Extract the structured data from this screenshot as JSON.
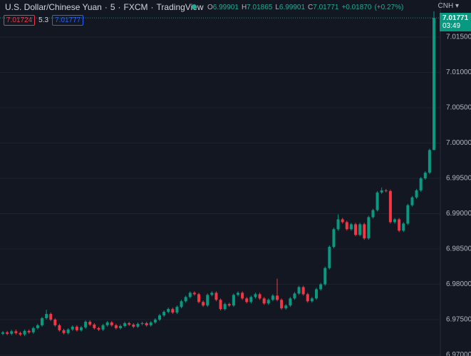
{
  "header": {
    "title": "U.S. Dollar/Chinese Yuan",
    "sep": "·",
    "interval": "5",
    "exchange": "FXCM",
    "source": "TradingView",
    "open_label": "O",
    "high_label": "H",
    "low_label": "L",
    "close_label": "C",
    "change": "+0.01870",
    "change_pct": "(+0.27%)",
    "bid": "7.01724",
    "spread": "5.3",
    "ask": "7.01777",
    "currency": "CNH",
    "countdown": "03:49"
  },
  "chart_data": {
    "type": "candlestick",
    "up_color": "#089981",
    "down_color": "#f23645",
    "grid": true,
    "ylim": [
      6.96985,
      7.02025
    ],
    "yticks": [
      {
        "value": 6.97,
        "label": "6.97000"
      },
      {
        "value": 6.975,
        "label": "6.97500"
      },
      {
        "value": 6.98,
        "label": "6.98000"
      },
      {
        "value": 6.985,
        "label": "6.98500"
      },
      {
        "value": 6.99,
        "label": "6.99000"
      },
      {
        "value": 6.995,
        "label": "6.99500"
      },
      {
        "value": 7.0,
        "label": "7.00000"
      },
      {
        "value": 7.005,
        "label": "7.00500"
      },
      {
        "value": 7.01,
        "label": "7.01000"
      },
      {
        "value": 7.015,
        "label": "7.01500"
      }
    ],
    "open": [
      6.973,
      6.9732,
      6.973,
      6.97335,
      6.9731,
      6.9729,
      6.9734,
      6.9732,
      6.9738,
      6.9742,
      6.9752,
      6.9758,
      6.975,
      6.9742,
      6.9735,
      6.9731,
      6.9736,
      6.974,
      6.9735,
      6.9739,
      6.9747,
      6.9743,
      6.9738,
      6.9736,
      6.9742,
      6.9746,
      6.9742,
      6.9738,
      6.9741,
      6.9745,
      6.9743,
      6.974,
      6.9744,
      6.9745,
      6.9742,
      6.9746,
      6.975,
      6.9756,
      6.9761,
      6.9765,
      6.976,
      6.9768,
      6.9776,
      6.9782,
      6.9788,
      6.9786,
      6.9775,
      6.977,
      6.9785,
      6.9788,
      6.9778,
      6.9765,
      6.9772,
      6.977,
      6.9785,
      6.9788,
      6.978,
      6.9775,
      6.9782,
      6.9786,
      6.978,
      6.9773,
      6.9778,
      6.9784,
      6.9778,
      6.9766,
      6.977,
      6.978,
      6.9787,
      6.9796,
      6.9786,
      6.9776,
      6.978,
      6.9793,
      6.98,
      6.9823,
      6.9853,
      6.9878,
      6.9892,
      6.9888,
      6.9878,
      6.9885,
      6.987,
      6.9885,
      6.9865,
      6.9895,
      6.9905,
      6.993,
      6.9933,
      6.9932,
      6.9888,
      6.9892,
      6.9876,
      6.9886,
      6.9912,
      6.9923,
      6.9933,
      6.995,
      6.9958,
      6.99901
    ],
    "high": [
      6.9734,
      6.9734,
      6.97355,
      6.9736,
      6.9733,
      6.9736,
      6.9736,
      6.974,
      6.9744,
      6.9754,
      6.9764,
      6.976,
      6.9752,
      6.9744,
      6.9737,
      6.9738,
      6.9742,
      6.9742,
      6.9741,
      6.9749,
      6.9749,
      6.9745,
      6.974,
      6.9744,
      6.9748,
      6.9748,
      6.9744,
      6.9743,
      6.9747,
      6.9747,
      6.9745,
      6.9746,
      6.9747,
      6.9747,
      6.9748,
      6.9752,
      6.9758,
      6.9763,
      6.9767,
      6.9767,
      6.977,
      6.9778,
      6.9784,
      6.979,
      6.979,
      6.9788,
      6.9777,
      6.9787,
      6.979,
      6.979,
      6.978,
      6.9774,
      6.9774,
      6.9787,
      6.979,
      6.979,
      6.9782,
      6.9784,
      6.9788,
      6.9788,
      6.9782,
      6.978,
      6.9786,
      6.9808,
      6.978,
      6.9772,
      6.9782,
      6.9789,
      6.9798,
      6.9798,
      6.9788,
      6.9782,
      6.9795,
      6.9802,
      6.9825,
      6.9855,
      6.988,
      6.9899,
      6.9894,
      6.989,
      6.9887,
      6.9887,
      6.9887,
      6.9887,
      6.9897,
      6.9907,
      6.9932,
      6.9937,
      6.9935,
      6.9934,
      6.9894,
      6.9894,
      6.9888,
      6.9914,
      6.9925,
      6.9935,
      6.9952,
      6.996,
      6.9992,
      7.01865
    ],
    "low": [
      6.9728,
      6.9728,
      6.9728,
      6.9729,
      6.9727,
      6.9727,
      6.973,
      6.973,
      6.9736,
      6.974,
      6.975,
      6.9748,
      6.974,
      6.9733,
      6.9729,
      6.9729,
      6.9734,
      6.9733,
      6.9733,
      6.9737,
      6.9741,
      6.9736,
      6.9734,
      6.9734,
      6.974,
      6.974,
      6.9736,
      6.9736,
      6.9739,
      6.9741,
      6.9738,
      6.9738,
      6.9742,
      6.974,
      6.974,
      6.9744,
      6.9748,
      6.9754,
      6.9759,
      6.9758,
      6.9758,
      6.9766,
      6.9774,
      6.978,
      6.9784,
      6.9773,
      6.9768,
      6.9768,
      6.9783,
      6.9776,
      6.9763,
      6.9763,
      6.9768,
      6.9768,
      6.9783,
      6.9778,
      6.9773,
      6.9773,
      6.978,
      6.9778,
      6.9771,
      6.9771,
      6.9776,
      6.9776,
      6.9764,
      6.9764,
      6.9768,
      6.9778,
      6.9785,
      6.9784,
      6.9774,
      6.9774,
      6.9778,
      6.9791,
      6.9798,
      6.9821,
      6.9851,
      6.9876,
      6.9886,
      6.9876,
      6.9876,
      6.9868,
      6.9868,
      6.9863,
      6.9863,
      6.9893,
      6.9903,
      6.9928,
      6.993,
      6.9886,
      6.9886,
      6.9874,
      6.9874,
      6.9884,
      6.991,
      6.9921,
      6.9931,
      6.9948,
      6.9956,
      6.99901
    ],
    "close": [
      6.9732,
      6.973,
      6.97335,
      6.9731,
      6.9729,
      6.9734,
      6.9732,
      6.9738,
      6.9742,
      6.9752,
      6.9758,
      6.975,
      6.9742,
      6.9735,
      6.9731,
      6.9736,
      6.974,
      6.9735,
      6.9739,
      6.9747,
      6.9743,
      6.9738,
      6.9736,
      6.9742,
      6.9746,
      6.9742,
      6.9738,
      6.9741,
      6.9745,
      6.9743,
      6.974,
      6.9744,
      6.9745,
      6.9742,
      6.9746,
      6.975,
      6.9756,
      6.9761,
      6.9765,
      6.976,
      6.9768,
      6.9776,
      6.9782,
      6.9788,
      6.9786,
      6.9775,
      6.977,
      6.9785,
      6.9788,
      6.9778,
      6.9765,
      6.9772,
      6.977,
      6.9785,
      6.9788,
      6.978,
      6.9775,
      6.9782,
      6.9786,
      6.978,
      6.9773,
      6.9778,
      6.9784,
      6.9778,
      6.9766,
      6.977,
      6.978,
      6.9787,
      6.9796,
      6.9786,
      6.9776,
      6.978,
      6.9793,
      6.98,
      6.9823,
      6.9853,
      6.9878,
      6.9892,
      6.9888,
      6.9878,
      6.9885,
      6.987,
      6.9885,
      6.9865,
      6.9895,
      6.9905,
      6.993,
      6.9933,
      6.9932,
      6.9888,
      6.9892,
      6.9876,
      6.9886,
      6.9912,
      6.9923,
      6.9933,
      6.995,
      6.9958,
      6.99901,
      7.01771
    ]
  }
}
